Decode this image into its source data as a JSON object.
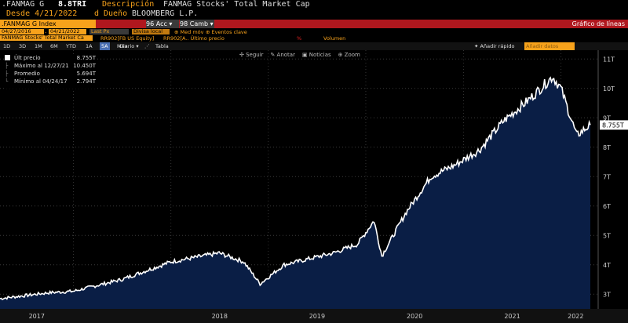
{
  "header": {
    "ticker": ".FANMAG G",
    "last_value": "8.8TRI",
    "desc_label": "Descripción",
    "description": "FANMAG Stocks' Total Market Cap",
    "since": "Desde 4/21/2022",
    "owner_prefix": "d",
    "owner_label": "Dueño",
    "owner": "BLOOMBERG L.P."
  },
  "function_bar": {
    "security": ".FANMAG G Index",
    "acc_num": "96",
    "acc_label": "Acc",
    "camb_num": "98",
    "camb_label": "Camb",
    "title": "Gráfico de líneas"
  },
  "controls": {
    "start_date": "04/27/2016",
    "end_date": "04/21/2022",
    "field": "Last Px",
    "currency": "Divisa local",
    "moving_avg": "Med móv",
    "key_events": "Eventos clave",
    "series_label": "FANMAG Stocks' Total Market Ca",
    "compare_1": "RR902[FB US Equity]",
    "compare_2": "RR902[A.. Último precio",
    "percent": "%",
    "volume": "Volumen"
  },
  "periods": {
    "items": [
      "1D",
      "3D",
      "1M",
      "6M",
      "YTD",
      "1A",
      "5A",
      "Máx"
    ],
    "active": "5A",
    "frequency": "Diario",
    "chart_icon": "line-chart-icon",
    "table": "Tabla",
    "quick_add": "Añadir rápido",
    "add_data": "Añadir datos"
  },
  "toolbar": {
    "follow": "Seguir",
    "annotate": "Anotar",
    "news": "Noticias",
    "zoom": "Zoom"
  },
  "legend": {
    "rows": [
      {
        "label": "Últ precio",
        "value": "8.755T"
      },
      {
        "label": "Máximo al 12/27/21",
        "value": "10.450T"
      },
      {
        "label": "Promedio",
        "value": "5.694T"
      },
      {
        "label": "Mínimo al 04/24/17",
        "value": "2.794T"
      }
    ]
  },
  "colors": {
    "line": "#ffffff",
    "area": "#0a1e45",
    "accent": "#f7a21b",
    "bar": "#b0171e"
  },
  "chart_data": {
    "type": "area",
    "ylim": [
      2.5,
      11.3
    ],
    "y_ticks": [
      "3T",
      "4T",
      "5T",
      "6T",
      "7T",
      "8T",
      "9T",
      "10T",
      "11T"
    ],
    "y_tick_values": [
      3,
      4,
      5,
      6,
      7,
      8,
      9,
      10,
      11
    ],
    "x_labels": [
      "2017",
      "2018",
      "2019",
      "2020",
      "2021",
      "2022"
    ],
    "last_label": "8.755T",
    "x": [
      "2016-04",
      "2016-07",
      "2016-10",
      "2017-01",
      "2017-04",
      "2017-07",
      "2017-10",
      "2018-01",
      "2018-04",
      "2018-07",
      "2018-10",
      "2018-12",
      "2019-03",
      "2019-06",
      "2019-09",
      "2019-12",
      "2020-02",
      "2020-03",
      "2020-06",
      "2020-09",
      "2020-12",
      "2021-03",
      "2021-06",
      "2021-09",
      "2021-12",
      "2022-01",
      "2022-03",
      "2022-04"
    ],
    "values": [
      2.85,
      2.95,
      3.05,
      3.1,
      3.3,
      3.5,
      3.8,
      4.1,
      4.25,
      4.4,
      4.1,
      3.35,
      4.0,
      4.2,
      4.4,
      4.7,
      5.5,
      4.3,
      5.8,
      7.0,
      7.4,
      7.9,
      8.9,
      9.6,
      10.4,
      10.0,
      8.4,
      8.755
    ]
  }
}
